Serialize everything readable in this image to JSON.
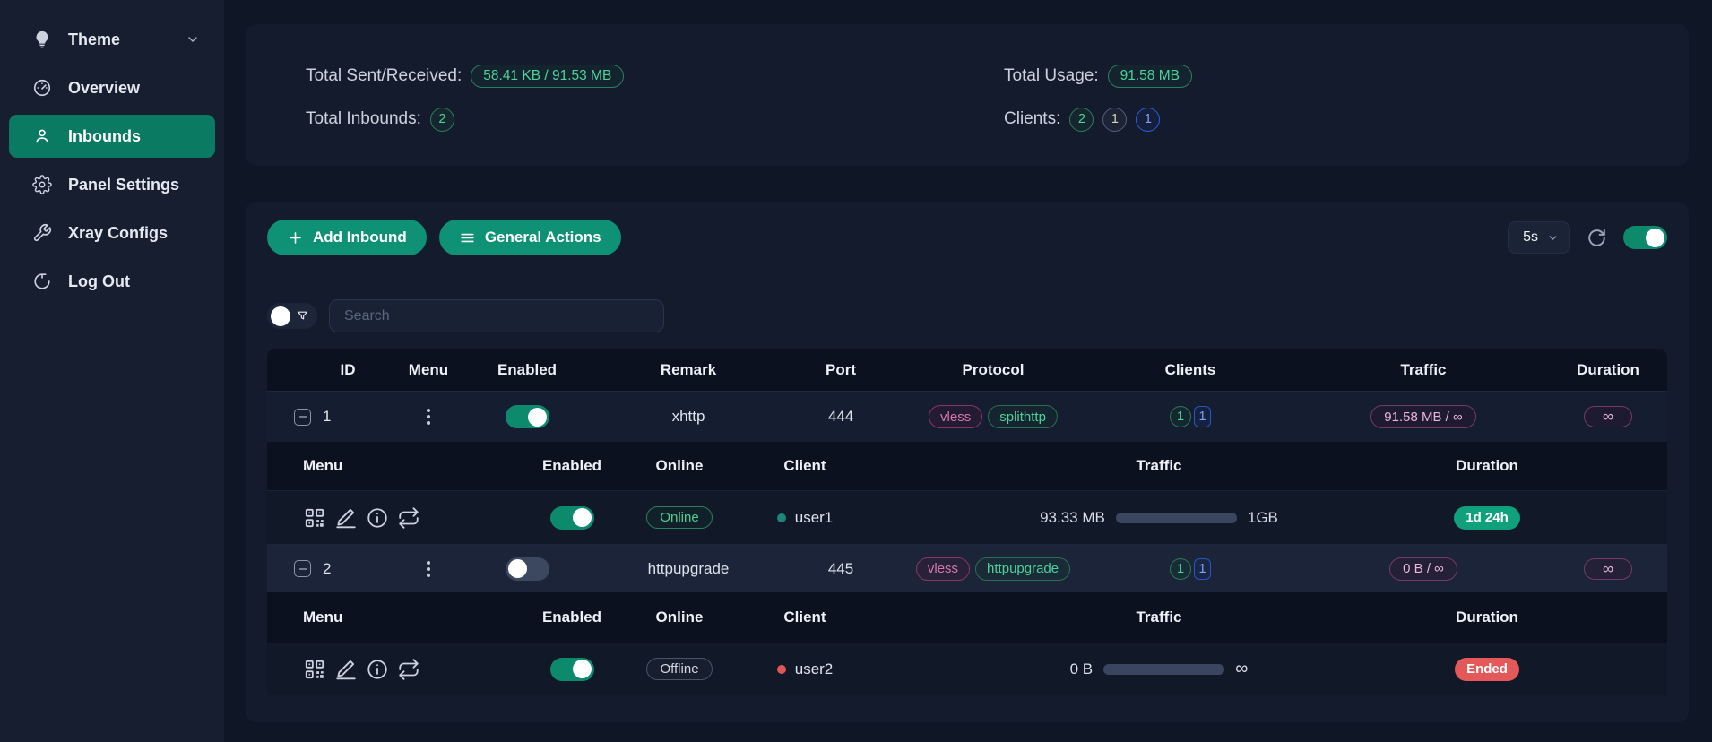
{
  "sidebar": {
    "items": [
      {
        "label": "Theme"
      },
      {
        "label": "Overview"
      },
      {
        "label": "Inbounds"
      },
      {
        "label": "Panel Settings"
      },
      {
        "label": "Xray Configs"
      },
      {
        "label": "Log Out"
      }
    ]
  },
  "stats": {
    "sent_received_label": "Total Sent/Received:",
    "sent_received_value": "58.41 KB / 91.53 MB",
    "total_inbounds_label": "Total Inbounds:",
    "total_inbounds_value": "2",
    "total_usage_label": "Total Usage:",
    "total_usage_value": "91.58 MB",
    "clients_label": "Clients:",
    "clients_badges": [
      {
        "value": "2",
        "color": "green"
      },
      {
        "value": "1",
        "color": "gray"
      },
      {
        "value": "1",
        "color": "blue"
      }
    ]
  },
  "toolbar": {
    "add_inbound_label": "Add Inbound",
    "general_actions_label": "General Actions",
    "refresh_interval": "5s",
    "auto_refresh_state": "on"
  },
  "search": {
    "placeholder": "Search",
    "filter_toggle_state": "off"
  },
  "table": {
    "headers": [
      "ID",
      "Menu",
      "Enabled",
      "Remark",
      "Port",
      "Protocol",
      "Clients",
      "Traffic",
      "Duration"
    ],
    "sub_headers": [
      "Menu",
      "Enabled",
      "Online",
      "Client",
      "Traffic",
      "Duration"
    ],
    "inbounds": [
      {
        "id": "1",
        "enabled_state": "on",
        "remark": "xhttp",
        "port": "444",
        "protocols": [
          "vless",
          "splithttp"
        ],
        "client_counts": [
          "1",
          "1"
        ],
        "traffic": "91.58 MB / ∞",
        "duration": "∞",
        "clients": [
          {
            "enabled_state": "on",
            "online_status": "Online",
            "online_variant": "online",
            "name": "user1",
            "dot_color": "teal",
            "traffic_used": "93.33 MB",
            "traffic_total": "1GB",
            "progress_pct": 9,
            "progress_color": "teal",
            "duration": "1d 24h",
            "duration_variant": "active"
          }
        ]
      },
      {
        "id": "2",
        "enabled_state": "off",
        "remark": "httpupgrade",
        "port": "445",
        "protocols": [
          "vless",
          "httpupgrade"
        ],
        "client_counts": [
          "1",
          "1"
        ],
        "traffic": "0 B / ∞",
        "duration": "∞",
        "clients": [
          {
            "enabled_state": "on",
            "online_status": "Offline",
            "online_variant": "offline",
            "name": "user2",
            "dot_color": "red",
            "traffic_used": "0 B",
            "traffic_total": "∞",
            "progress_pct": 100,
            "progress_color": "purple",
            "duration": "Ended",
            "duration_variant": "ended"
          }
        ]
      }
    ]
  },
  "colors": {
    "accent_green": "#0e9174",
    "sidebar_active": "#0a7a63",
    "badge_green": "#4ed29a",
    "badge_blue": "#7aa2ff",
    "pill_pink": "#e9b6d8",
    "danger": "#e4585a",
    "active_badge": "#10a07c",
    "purple_bar": "#7b4494",
    "teal_bar": "#229c82"
  }
}
